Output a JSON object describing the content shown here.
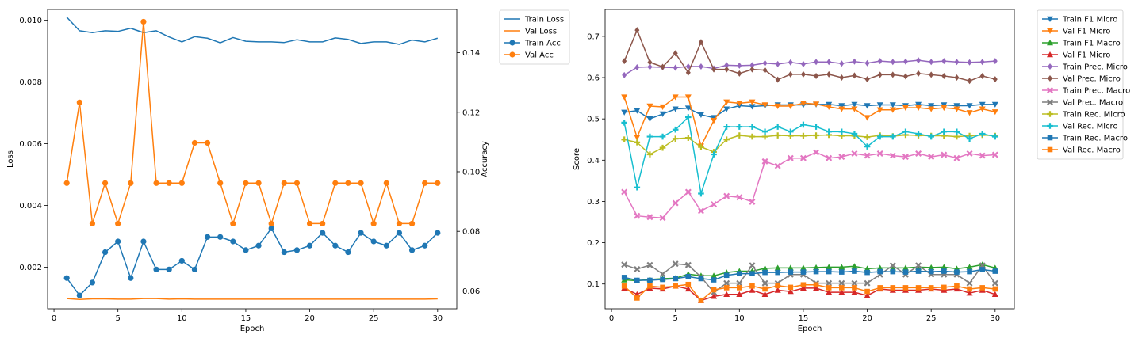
{
  "chart_data": [
    {
      "type": "line",
      "xlabel": "Epoch",
      "ylabel": "Loss",
      "ylabel_right": "Accuracy",
      "xlim": [
        -0.5,
        31.5
      ],
      "ylim": [
        0.00065,
        0.01035
      ],
      "ylim_right": [
        0.054,
        0.1545
      ],
      "xticks": [
        0,
        5,
        10,
        15,
        20,
        25,
        30
      ],
      "yticks": [
        0.002,
        0.004,
        0.006,
        0.008,
        0.01
      ],
      "yticks_right": [
        0.06,
        0.08,
        0.1,
        0.12,
        0.14
      ],
      "ytick_labels": [
        "0.002",
        "0.004",
        "0.006",
        "0.008",
        "0.010"
      ],
      "ytick_labels_right": [
        "0.06",
        "0.08",
        "0.10",
        "0.12",
        "0.14"
      ],
      "legend_position": "outside-top-right",
      "x": [
        1,
        2,
        3,
        4,
        5,
        6,
        7,
        8,
        9,
        10,
        11,
        12,
        13,
        14,
        15,
        16,
        17,
        18,
        19,
        20,
        21,
        22,
        23,
        24,
        25,
        26,
        27,
        28,
        29,
        30
      ],
      "series": [
        {
          "name": "Train Loss",
          "axis": "left",
          "color": "#1f77b4",
          "marker": "none",
          "values": [
            0.0101,
            0.00966,
            0.0096,
            0.00966,
            0.00964,
            0.00974,
            0.0096,
            0.00966,
            0.00946,
            0.0093,
            0.00947,
            0.00942,
            0.00927,
            0.00944,
            0.00932,
            0.0093,
            0.0093,
            0.00928,
            0.00937,
            0.0093,
            0.0093,
            0.00943,
            0.00938,
            0.00925,
            0.0093,
            0.0093,
            0.00922,
            0.00936,
            0.0093,
            0.00942
          ]
        },
        {
          "name": "Val Loss",
          "axis": "left",
          "color": "#ff7f0e",
          "marker": "none",
          "values": [
            0.00098,
            0.00095,
            0.00097,
            0.00097,
            0.00096,
            0.00096,
            0.00098,
            0.00098,
            0.00096,
            0.00097,
            0.00096,
            0.00096,
            0.00096,
            0.00096,
            0.00096,
            0.00096,
            0.00096,
            0.00096,
            0.00096,
            0.00096,
            0.00096,
            0.00096,
            0.00096,
            0.00096,
            0.00096,
            0.00096,
            0.00096,
            0.00096,
            0.00096,
            0.00097
          ]
        },
        {
          "name": "Train Acc",
          "axis": "right",
          "color": "#1f77b4",
          "marker": "circle",
          "values": [
            0.0643,
            0.0585,
            0.0628,
            0.073,
            0.0766,
            0.0643,
            0.0766,
            0.0672,
            0.0672,
            0.0701,
            0.0672,
            0.0781,
            0.0781,
            0.0766,
            0.0737,
            0.0752,
            0.081,
            0.073,
            0.0737,
            0.0752,
            0.0795,
            0.0752,
            0.073,
            0.0795,
            0.0766,
            0.0752,
            0.0795,
            0.0737,
            0.0752,
            0.0795
          ]
        },
        {
          "name": "Val Acc",
          "axis": "right",
          "color": "#ff7f0e",
          "marker": "circle",
          "values": [
            0.0962,
            0.1233,
            0.0826,
            0.0962,
            0.0826,
            0.0962,
            0.1504,
            0.0962,
            0.0962,
            0.0962,
            0.1097,
            0.1097,
            0.0962,
            0.0826,
            0.0962,
            0.0962,
            0.0826,
            0.0962,
            0.0962,
            0.0826,
            0.0826,
            0.0962,
            0.0962,
            0.0962,
            0.0826,
            0.0962,
            0.0826,
            0.0826,
            0.0962,
            0.0962
          ]
        }
      ]
    },
    {
      "type": "line",
      "xlabel": "Epoch",
      "ylabel": "Score",
      "xlim": [
        -0.5,
        31.5
      ],
      "ylim": [
        0.04,
        0.765
      ],
      "xticks": [
        0,
        5,
        10,
        15,
        20,
        25,
        30
      ],
      "yticks": [
        0.1,
        0.2,
        0.3,
        0.4,
        0.5,
        0.6,
        0.7
      ],
      "ytick_labels": [
        "0.1",
        "0.2",
        "0.3",
        "0.4",
        "0.5",
        "0.6",
        "0.7"
      ],
      "legend_position": "outside-top-right",
      "x": [
        1,
        2,
        3,
        4,
        5,
        6,
        7,
        8,
        9,
        10,
        11,
        12,
        13,
        14,
        15,
        16,
        17,
        18,
        19,
        20,
        21,
        22,
        23,
        24,
        25,
        26,
        27,
        28,
        29,
        30
      ],
      "series": [
        {
          "name": "Train F1 Micro",
          "color": "#1f77b4",
          "marker": "triangle-down",
          "values": [
            0.516,
            0.52,
            0.5,
            0.512,
            0.524,
            0.526,
            0.51,
            0.503,
            0.524,
            0.532,
            0.53,
            0.532,
            0.534,
            0.534,
            0.534,
            0.535,
            0.535,
            0.532,
            0.535,
            0.532,
            0.534,
            0.534,
            0.532,
            0.535,
            0.532,
            0.534,
            0.532,
            0.532,
            0.535,
            0.535
          ]
        },
        {
          "name": "Val F1 Micro",
          "color": "#ff7f0e",
          "marker": "triangle-down",
          "values": [
            0.553,
            0.455,
            0.531,
            0.529,
            0.553,
            0.553,
            0.434,
            0.496,
            0.541,
            0.538,
            0.541,
            0.534,
            0.531,
            0.531,
            0.538,
            0.536,
            0.529,
            0.524,
            0.524,
            0.503,
            0.522,
            0.522,
            0.527,
            0.527,
            0.524,
            0.527,
            0.524,
            0.515,
            0.524,
            0.517
          ]
        },
        {
          "name": "Train F1 Macro",
          "color": "#2ca02c",
          "marker": "triangle-up",
          "values": [
            0.11,
            0.108,
            0.111,
            0.113,
            0.114,
            0.124,
            0.12,
            0.12,
            0.128,
            0.131,
            0.131,
            0.138,
            0.139,
            0.139,
            0.139,
            0.14,
            0.141,
            0.141,
            0.143,
            0.137,
            0.139,
            0.139,
            0.139,
            0.141,
            0.14,
            0.141,
            0.137,
            0.141,
            0.147,
            0.139
          ]
        },
        {
          "name": "Val F1 Micro",
          "color": "#d62728",
          "marker": "triangle-up",
          "values": [
            0.09,
            0.075,
            0.09,
            0.088,
            0.095,
            0.088,
            0.06,
            0.07,
            0.075,
            0.075,
            0.085,
            0.075,
            0.085,
            0.082,
            0.09,
            0.09,
            0.08,
            0.08,
            0.08,
            0.072,
            0.088,
            0.085,
            0.085,
            0.085,
            0.088,
            0.085,
            0.088,
            0.078,
            0.085,
            0.075
          ]
        },
        {
          "name": "Train Prec. Micro",
          "color": "#9467bd",
          "marker": "diamond",
          "values": [
            0.606,
            0.625,
            0.626,
            0.625,
            0.624,
            0.627,
            0.627,
            0.622,
            0.63,
            0.629,
            0.63,
            0.635,
            0.633,
            0.637,
            0.633,
            0.638,
            0.638,
            0.634,
            0.639,
            0.635,
            0.64,
            0.638,
            0.639,
            0.642,
            0.638,
            0.64,
            0.638,
            0.637,
            0.638,
            0.64
          ]
        },
        {
          "name": "Val Prec. Micro",
          "color": "#8c564b",
          "marker": "diamond",
          "values": [
            0.64,
            0.715,
            0.637,
            0.626,
            0.659,
            0.612,
            0.686,
            0.62,
            0.62,
            0.61,
            0.62,
            0.618,
            0.595,
            0.608,
            0.608,
            0.604,
            0.608,
            0.6,
            0.605,
            0.596,
            0.607,
            0.607,
            0.603,
            0.61,
            0.607,
            0.604,
            0.6,
            0.592,
            0.604,
            0.596
          ]
        },
        {
          "name": "Train Prec. Macro",
          "color": "#e377c2",
          "marker": "x",
          "values": [
            0.323,
            0.265,
            0.262,
            0.26,
            0.296,
            0.323,
            0.277,
            0.293,
            0.313,
            0.31,
            0.299,
            0.397,
            0.386,
            0.405,
            0.405,
            0.419,
            0.405,
            0.408,
            0.416,
            0.411,
            0.416,
            0.411,
            0.408,
            0.416,
            0.408,
            0.413,
            0.405,
            0.416,
            0.411,
            0.413
          ]
        },
        {
          "name": "Val Prec. Macro",
          "color": "#7f7f7f",
          "marker": "x",
          "values": [
            0.147,
            0.136,
            0.146,
            0.124,
            0.149,
            0.146,
            0.117,
            0.08,
            0.102,
            0.102,
            0.145,
            0.102,
            0.102,
            0.123,
            0.123,
            0.102,
            0.102,
            0.102,
            0.102,
            0.102,
            0.123,
            0.145,
            0.123,
            0.145,
            0.123,
            0.123,
            0.123,
            0.102,
            0.145,
            0.102
          ]
        },
        {
          "name": "Train Rec. Micro",
          "color": "#bcbd22",
          "marker": "plus",
          "values": [
            0.45,
            0.443,
            0.414,
            0.43,
            0.452,
            0.454,
            0.432,
            0.42,
            0.45,
            0.46,
            0.457,
            0.457,
            0.46,
            0.459,
            0.459,
            0.46,
            0.461,
            0.459,
            0.459,
            0.456,
            0.46,
            0.458,
            0.461,
            0.46,
            0.459,
            0.459,
            0.457,
            0.459,
            0.461,
            0.459
          ]
        },
        {
          "name": "Val Rec. Micro",
          "color": "#17becf",
          "marker": "plus",
          "values": [
            0.491,
            0.334,
            0.457,
            0.457,
            0.474,
            0.504,
            0.319,
            0.414,
            0.481,
            0.481,
            0.481,
            0.469,
            0.481,
            0.469,
            0.486,
            0.481,
            0.469,
            0.469,
            0.464,
            0.433,
            0.457,
            0.457,
            0.469,
            0.464,
            0.457,
            0.469,
            0.469,
            0.452,
            0.464,
            0.457
          ]
        },
        {
          "name": "Train Rec. Macro",
          "color": "#1f77b4",
          "marker": "square",
          "values": [
            0.116,
            0.109,
            0.109,
            0.111,
            0.113,
            0.118,
            0.113,
            0.11,
            0.121,
            0.125,
            0.125,
            0.128,
            0.128,
            0.129,
            0.129,
            0.13,
            0.13,
            0.129,
            0.131,
            0.128,
            0.13,
            0.13,
            0.129,
            0.131,
            0.13,
            0.131,
            0.129,
            0.13,
            0.135,
            0.131
          ]
        },
        {
          "name": "Val Rec. Macro",
          "color": "#ff7f0e",
          "marker": "square",
          "values": [
            0.095,
            0.066,
            0.095,
            0.092,
            0.095,
            0.099,
            0.06,
            0.086,
            0.091,
            0.091,
            0.095,
            0.088,
            0.096,
            0.092,
            0.098,
            0.098,
            0.091,
            0.091,
            0.091,
            0.082,
            0.091,
            0.091,
            0.091,
            0.091,
            0.091,
            0.092,
            0.095,
            0.088,
            0.091,
            0.088
          ]
        }
      ]
    }
  ]
}
